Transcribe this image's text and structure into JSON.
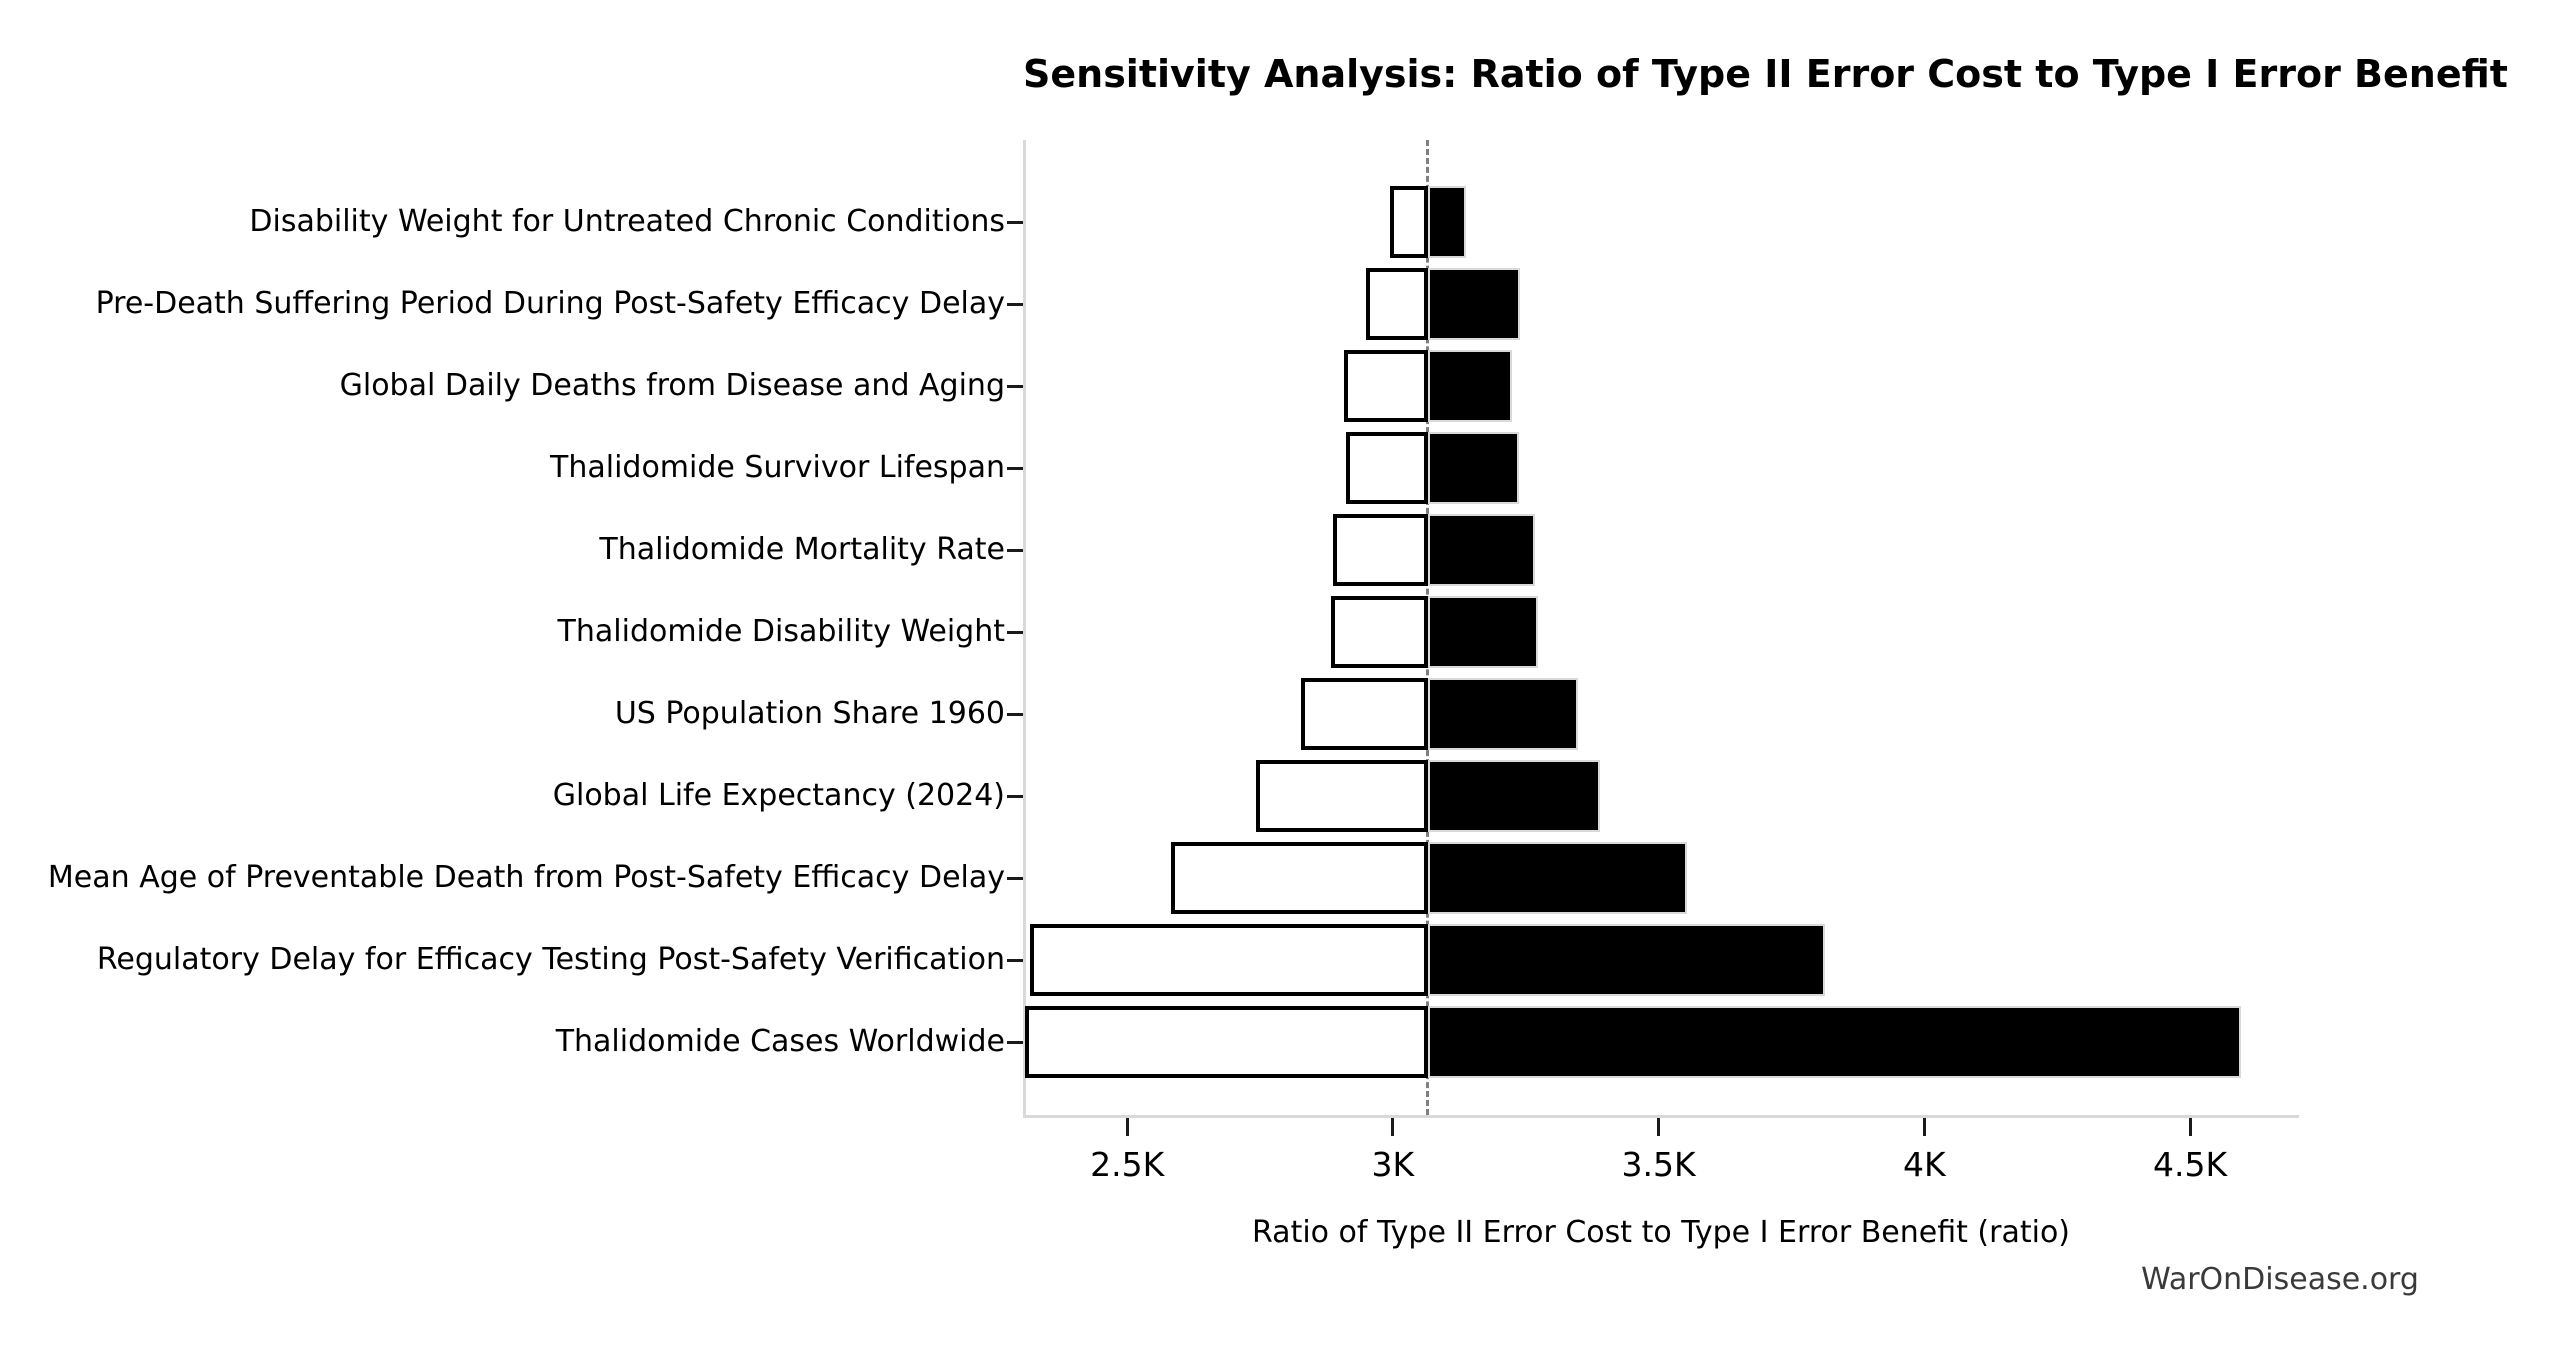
{
  "page": {
    "title": "Sensitivity Analysis: Ratio of Type II Error Cost to Type I Error Benefit",
    "watermark": "WarOnDisease.org"
  },
  "chart_data": {
    "type": "bar",
    "variant": "tornado-sensitivity",
    "orientation": "horizontal",
    "title": "Sensitivity Analysis: Ratio of Type II Error Cost to Type I Error Benefit",
    "xlabel": "Ratio of Type II Error Cost to Type I Error Benefit (ratio)",
    "ylabel": "",
    "baseline_value": 3066,
    "xlim": [
      2304,
      4705
    ],
    "grid": false,
    "legend": "none",
    "x_ticks": [
      {
        "value": 2500,
        "label": "2.5K"
      },
      {
        "value": 3000,
        "label": "3K"
      },
      {
        "value": 3500,
        "label": "3.5K"
      },
      {
        "value": 4000,
        "label": "4K"
      },
      {
        "value": 4500,
        "label": "4.5K"
      }
    ],
    "bars": [
      {
        "label": "Disability Weight for Untreated Chronic Conditions",
        "low": 2995,
        "high": 3137
      },
      {
        "label": "Pre-Death Suffering Period During Post-Safety Efficacy Delay",
        "low": 2949,
        "high": 3239
      },
      {
        "label": "Global Daily Deaths from Disease and Aging",
        "low": 2908,
        "high": 3224
      },
      {
        "label": "Thalidomide Survivor Lifespan",
        "low": 2912,
        "high": 3237
      },
      {
        "label": "Thalidomide Mortality Rate",
        "low": 2887,
        "high": 3267
      },
      {
        "label": "Thalidomide Disability Weight",
        "low": 2883,
        "high": 3274
      },
      {
        "label": "US Population Share 1960",
        "low": 2827,
        "high": 3349
      },
      {
        "label": "Global Life Expectancy (2024)",
        "low": 2742,
        "high": 3390
      },
      {
        "label": "Mean Age of Preventable Death from Post-Safety Efficacy Delay",
        "low": 2582,
        "high": 3553
      },
      {
        "label": "Regulatory Delay for Efficacy Testing Post-Safety Verification",
        "low": 2318,
        "high": 3814
      },
      {
        "label": "Thalidomide Cases Worldwide",
        "low": 2308,
        "high": 4595
      }
    ],
    "colors": {
      "low_fill": "#ffffff",
      "high_fill": "#000000",
      "low_border": "#000000",
      "high_border": "#d9d9d9",
      "baseline_line": "#7f7f7f",
      "axis_line": "#d9d9d9",
      "tick_mark": "#1a1a1a",
      "text": "#000000",
      "watermark_text": "#3a3a3a",
      "background": "#ffffff"
    }
  }
}
